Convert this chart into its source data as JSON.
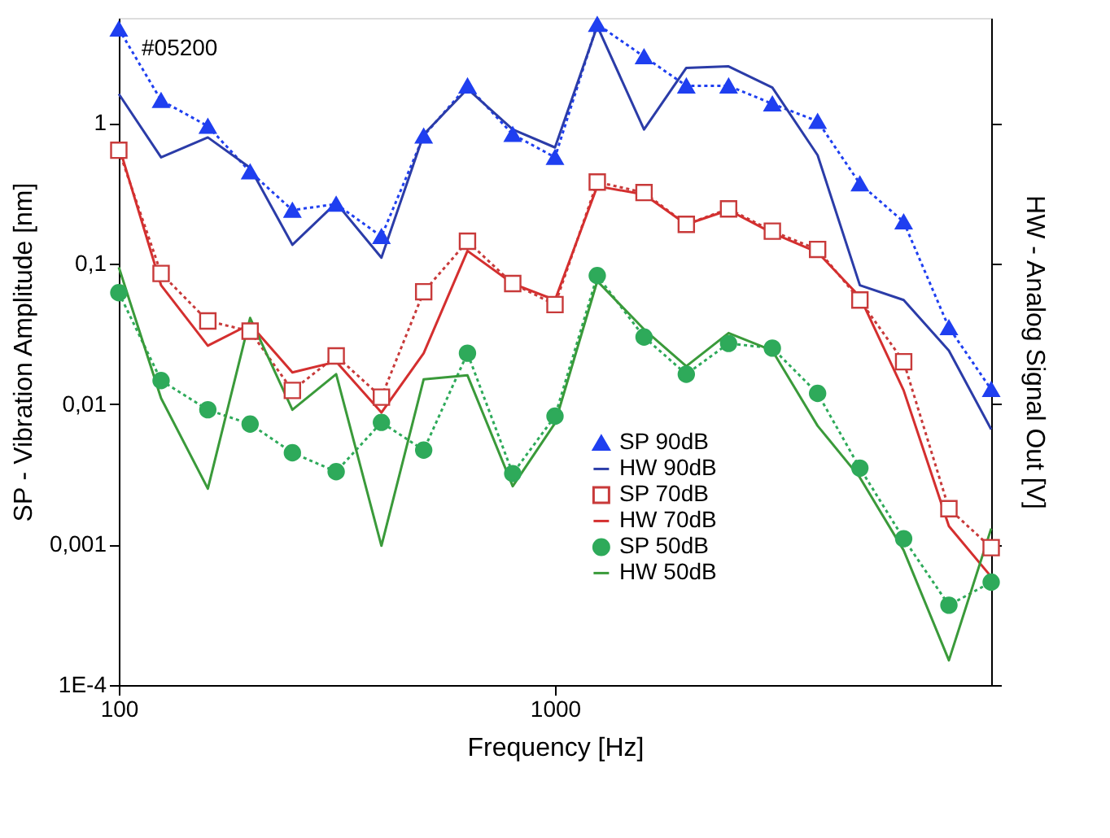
{
  "chart_data": {
    "type": "line",
    "xlabel": "Frequency [Hz]",
    "ylabel": "SP - Vibration Amplitude [nm]",
    "y2label": "HW - Analog Signal Out [V]",
    "annotations": [
      "#05200"
    ],
    "log": "xy",
    "xlim": [
      100,
      10000
    ],
    "xticks": [
      100,
      1000
    ],
    "ylim": [
      0.0001,
      5.6
    ],
    "yticks": [
      {
        "value": 0.0001,
        "label": "1E-4"
      },
      {
        "value": 0.001,
        "label": "0,001"
      },
      {
        "value": 0.01,
        "label": "0,01"
      },
      {
        "value": 0.1,
        "label": "0,1"
      },
      1
    ],
    "grid": false,
    "legend": "bottom right",
    "x": [
      100,
      125,
      160,
      200,
      250,
      315,
      400,
      500,
      630,
      800,
      1000,
      1250,
      1600,
      2000,
      2500,
      3150,
      4000,
      5000,
      6300,
      8000,
      10000
    ],
    "series": [
      {
        "name": "SP 90dB",
        "color": "#1f3ff0",
        "marker": "triangle",
        "line_style": "dotted",
        "values": [
          4.67,
          1.45,
          0.95,
          0.45,
          0.24,
          0.265,
          0.156,
          0.81,
          1.84,
          0.83,
          0.57,
          5.05,
          2.97,
          1.84,
          1.84,
          1.37,
          1.03,
          0.37,
          0.198,
          0.035,
          0.0127
        ]
      },
      {
        "name": "HW 90dB",
        "color": "#2b3ca8",
        "marker": "none",
        "line_style": "solid",
        "values": [
          1.61,
          0.57,
          0.79,
          0.48,
          0.136,
          0.27,
          0.11,
          0.83,
          1.75,
          0.9,
          0.67,
          4.9,
          0.9,
          2.47,
          2.53,
          1.79,
          0.59,
          0.07,
          0.055,
          0.024,
          0.0066
        ]
      },
      {
        "name": "SP 70dB",
        "color": "#c83a3a",
        "marker": "square",
        "line_style": "dotted",
        "values": [
          0.64,
          0.085,
          0.039,
          0.033,
          0.0125,
          0.022,
          0.0112,
          0.063,
          0.144,
          0.072,
          0.051,
          0.38,
          0.32,
          0.19,
          0.245,
          0.17,
          0.126,
          0.055,
          0.02,
          0.0018,
          0.00095
        ]
      },
      {
        "name": "HW 70dB",
        "color": "#d42f2f",
        "marker": "none",
        "line_style": "solid",
        "values": [
          0.69,
          0.07,
          0.026,
          0.037,
          0.0168,
          0.02,
          0.0087,
          0.023,
          0.123,
          0.072,
          0.055,
          0.355,
          0.31,
          0.19,
          0.24,
          0.165,
          0.12,
          0.058,
          0.0125,
          0.00135,
          0.00059
        ]
      },
      {
        "name": "SP 50dB",
        "color": "#2eaa5a",
        "marker": "circle",
        "line_style": "dotted",
        "values": [
          0.062,
          0.0147,
          0.0091,
          0.0072,
          0.0045,
          0.0033,
          0.0074,
          0.0047,
          0.023,
          0.0032,
          0.0082,
          0.082,
          0.03,
          0.0163,
          0.027,
          0.025,
          0.0119,
          0.0035,
          0.0011,
          0.00037,
          0.00054
        ]
      },
      {
        "name": "HW 50dB",
        "color": "#3a9a3a",
        "marker": "none",
        "line_style": "solid",
        "values": [
          0.094,
          0.011,
          0.0025,
          0.041,
          0.0091,
          0.0163,
          0.00098,
          0.015,
          0.016,
          0.0026,
          0.0073,
          0.075,
          0.034,
          0.0186,
          0.032,
          0.024,
          0.007,
          0.003,
          0.00091,
          0.00015,
          0.0013
        ]
      }
    ]
  }
}
